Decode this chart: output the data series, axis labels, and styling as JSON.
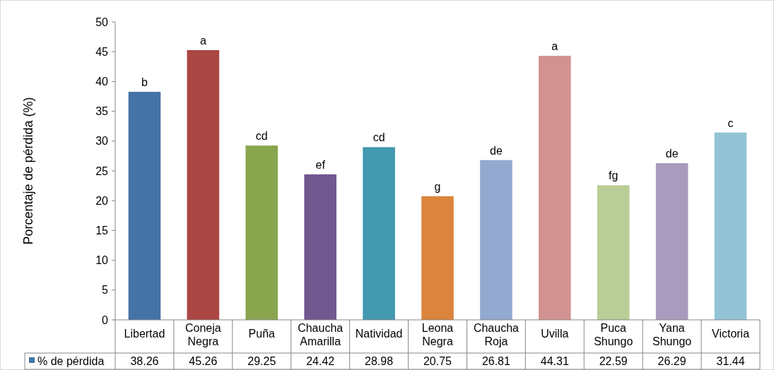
{
  "chart_data": {
    "type": "bar",
    "ylabel": "Porcentaje de pérdida (%)",
    "categories": [
      "Libertad",
      "Coneja Negra",
      "Puña",
      "Chaucha Amarilla",
      "Natividad",
      "Leona Negra",
      "Chaucha Roja",
      "Uvilla",
      "Puca Shungo",
      "Yana Shungo",
      "Victoria"
    ],
    "series": [
      {
        "name": "% de pérdida",
        "color": "#4572a7",
        "colors": [
          "#4572a7",
          "#aa4643",
          "#89a54e",
          "#71588f",
          "#4198af",
          "#db843d",
          "#93a9cf",
          "#d19392",
          "#b9cd96",
          "#a99bbd",
          "#92c3d4"
        ],
        "values": [
          38.26,
          45.26,
          29.25,
          24.42,
          28.98,
          20.75,
          26.81,
          44.31,
          22.59,
          26.29,
          31.44
        ]
      }
    ],
    "ylim": [
      0,
      50
    ],
    "yticks": [
      0,
      5,
      10,
      15,
      20,
      25,
      30,
      35,
      40,
      45,
      50
    ],
    "data_labels": true,
    "legend": "bottom",
    "annotations": [
      {
        "text": "b",
        "x": "Libertad",
        "y": 38.26
      },
      {
        "text": "a",
        "x": "Coneja Negra",
        "y": 45.26
      },
      {
        "text": "cd",
        "x": "Puña",
        "y": 29.25
      },
      {
        "text": "ef",
        "x": "Chaucha Amarilla",
        "y": 24.42
      },
      {
        "text": "cd",
        "x": "Natividad",
        "y": 28.98
      },
      {
        "text": "g",
        "x": "Leona Negra",
        "y": 20.75
      },
      {
        "text": "de",
        "x": "Chaucha Roja",
        "y": 26.81
      },
      {
        "text": "a",
        "x": "Uvilla",
        "y": 44.31
      },
      {
        "text": "fg",
        "x": "Puca Shungo",
        "y": 22.59
      },
      {
        "text": "de",
        "x": "Yana Shungo",
        "y": 26.29
      },
      {
        "text": "c",
        "x": "Victoria",
        "y": 31.44
      }
    ]
  }
}
